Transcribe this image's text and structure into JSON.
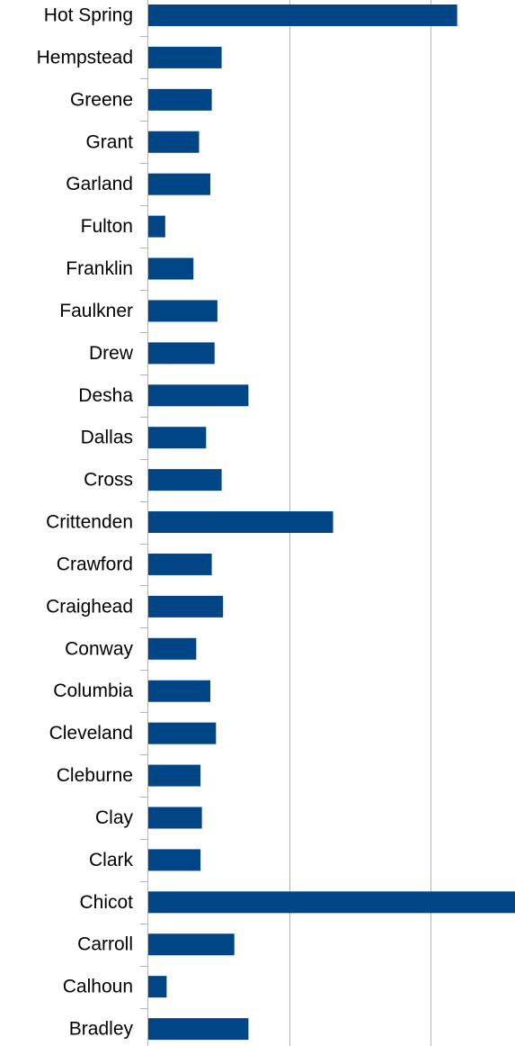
{
  "chart_data": {
    "type": "bar",
    "orientation": "horizontal",
    "title": "",
    "xlabel": "",
    "ylabel": "",
    "categories": [
      "Hot Spring",
      "Hempstead",
      "Greene",
      "Grant",
      "Garland",
      "Fulton",
      "Franklin",
      "Faulkner",
      "Drew",
      "Desha",
      "Dallas",
      "Cross",
      "Crittenden",
      "Crawford",
      "Craighead",
      "Conway",
      "Columbia",
      "Cleveland",
      "Cleburne",
      "Clay",
      "Clark",
      "Chicot",
      "Carroll",
      "Calhoun",
      "Bradley"
    ],
    "values": [
      21.9,
      5.2,
      4.5,
      3.6,
      4.4,
      1.2,
      3.2,
      4.9,
      4.7,
      7.1,
      4.1,
      5.2,
      13.1,
      4.5,
      5.3,
      3.4,
      4.4,
      4.8,
      3.7,
      3.8,
      3.7,
      26.0,
      6.1,
      1.3,
      7.1
    ],
    "xlim": [
      0,
      26
    ],
    "gridlines_at": [
      10,
      20
    ],
    "grid": true,
    "bar_color": "#004586",
    "grid_color": "#b3b3b3",
    "axis_color": "#b3b3b3"
  }
}
